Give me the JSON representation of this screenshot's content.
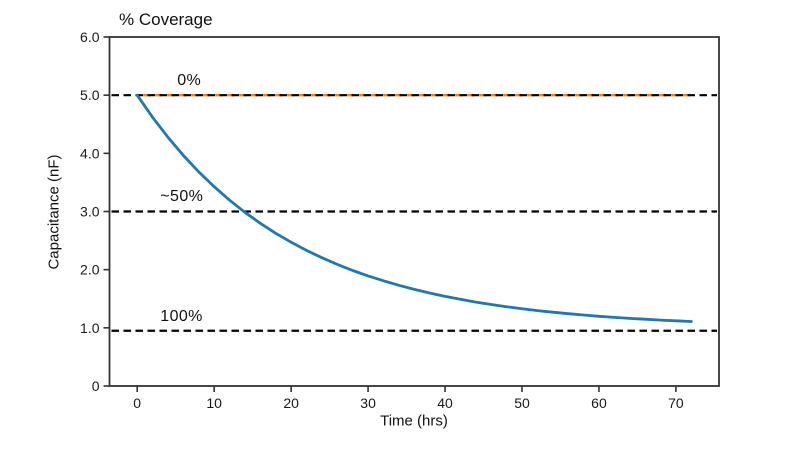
{
  "chart_data": {
    "type": "line",
    "title": "% Coverage",
    "xlabel": "Time (hrs)",
    "ylabel": "Capacitance (nF)",
    "xlim": [
      -3.6,
      75.6
    ],
    "ylim": [
      0,
      6.0
    ],
    "xticks": [
      0,
      10,
      20,
      30,
      40,
      50,
      60,
      70
    ],
    "xtick_labels": [
      "0",
      "10",
      "20",
      "30",
      "40",
      "50",
      "60",
      "70"
    ],
    "yticks": [
      0,
      1.0,
      2.0,
      3.0,
      4.0,
      5.0,
      6.0
    ],
    "ytick_labels": [
      "0",
      "1.0",
      "2.0",
      "3.0",
      "4.0",
      "5.0",
      "6.0"
    ],
    "grid": false,
    "legend": false,
    "colors": {
      "series_blue": "#1f77b4",
      "overlay_orange": "#ff7f0e",
      "reference_black": "#000000",
      "spine": "#333333"
    },
    "series": [
      {
        "name": "capacitance-decay",
        "color": "#1f77b4",
        "style": "solid",
        "line_width": 2.8,
        "x": [
          0,
          2,
          4,
          6,
          8,
          10,
          12,
          14,
          16,
          18,
          20,
          22,
          24,
          26,
          28,
          30,
          32,
          34,
          36,
          38,
          40,
          42,
          44,
          46,
          48,
          50,
          52,
          54,
          56,
          58,
          60,
          62,
          64,
          66,
          68,
          70,
          72
        ],
        "y": [
          5.0,
          4.619,
          4.275,
          3.963,
          3.681,
          3.426,
          3.195,
          2.986,
          2.797,
          2.626,
          2.472,
          2.331,
          2.205,
          2.09,
          1.986,
          1.893,
          1.808,
          1.731,
          1.661,
          1.598,
          1.541,
          1.49,
          1.443,
          1.401,
          1.363,
          1.328,
          1.297,
          1.269,
          1.243,
          1.22,
          1.199,
          1.18,
          1.163,
          1.148,
          1.133,
          1.121,
          1.109
        ]
      }
    ],
    "reference_lines": [
      {
        "label": "0%",
        "y": 5.0,
        "color": "#000000",
        "style": "dashed",
        "overlay": {
          "color": "#ff7f0e",
          "x_start": 0,
          "x_end": 72
        },
        "label_pos": {
          "x": 5.2,
          "y": 5.06
        }
      },
      {
        "label": "~50%",
        "y": 3.0,
        "color": "#000000",
        "style": "dashed",
        "label_pos": {
          "x": 3.0,
          "y": 3.06
        }
      },
      {
        "label": "100%",
        "y": 0.95,
        "color": "#000000",
        "style": "dashed",
        "label_pos": {
          "x": 3.0,
          "y": 1.0
        }
      }
    ]
  }
}
